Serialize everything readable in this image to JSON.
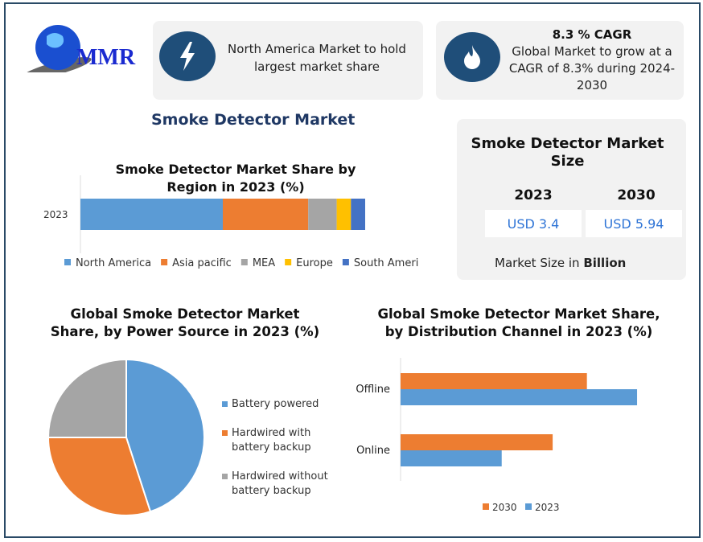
{
  "logo": {
    "text": "MMR"
  },
  "highlight1": {
    "icon": "lightning-icon",
    "text": "North America Market to hold largest market share"
  },
  "highlight2": {
    "icon": "flame-icon",
    "title": "8.3 % CAGR",
    "text": "Global Market to grow at a CAGR of 8.3% during 2024-2030"
  },
  "main_title": "Smoke Detector Market",
  "size_card": {
    "title": "Smoke Detector Market Size",
    "years": [
      "2023",
      "2030"
    ],
    "values": [
      "USD 3.4",
      "USD 5.94"
    ],
    "note_prefix": "Market Size in ",
    "note_bold": "Billion"
  },
  "colors": {
    "blue": "#5b9bd5",
    "orange": "#ed7d31",
    "gray": "#a5a5a5",
    "yellow": "#ffc000",
    "darkblue": "#4472c4"
  },
  "chart_data": [
    {
      "type": "bar",
      "stacked": true,
      "orientation": "horizontal",
      "title": "Smoke Detector Market Share by Region in 2023 (%)",
      "categories": [
        "2023"
      ],
      "series": [
        {
          "name": "North America",
          "values": [
            50
          ]
        },
        {
          "name": "Asia pacific",
          "values": [
            30
          ]
        },
        {
          "name": "MEA",
          "values": [
            10
          ]
        },
        {
          "name": "Europe",
          "values": [
            5
          ]
        },
        {
          "name": "South America",
          "values": [
            5
          ]
        }
      ],
      "legend": "bottom"
    },
    {
      "type": "pie",
      "title": "Global Smoke Detector Market Share, by Power Source in 2023 (%)",
      "labels": [
        "Battery powered",
        "Hardwired with battery backup",
        "Hardwired without battery backup"
      ],
      "values": [
        45,
        30,
        25
      ],
      "legend": "right"
    },
    {
      "type": "bar",
      "orientation": "horizontal",
      "title": "Global Smoke Detector Market Share, by Distribution Channel in 2023 (%)",
      "categories": [
        "Offline",
        "Online"
      ],
      "series": [
        {
          "name": "2030",
          "values": [
            234,
            191
          ]
        },
        {
          "name": "2023",
          "values": [
            297,
            127
          ]
        }
      ],
      "xlim": [
        0,
        300
      ],
      "legend": "bottom"
    }
  ]
}
